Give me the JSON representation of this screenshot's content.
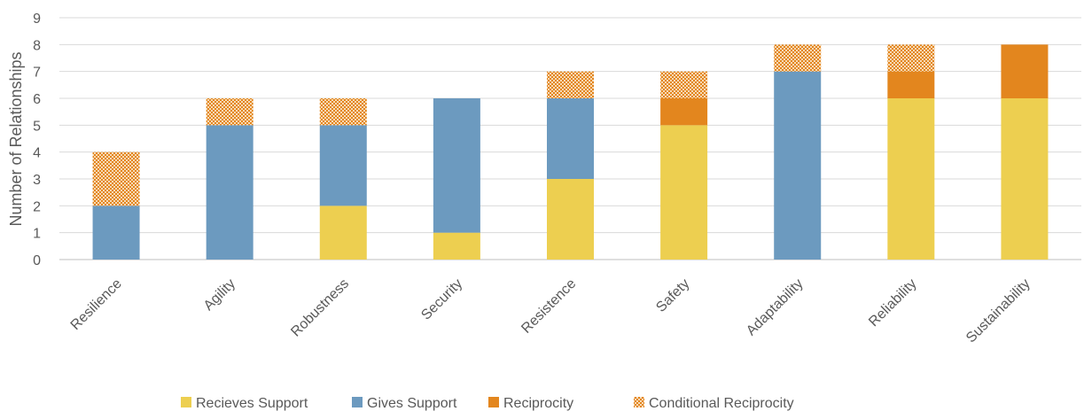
{
  "chart_data": {
    "type": "bar",
    "stacked": true,
    "categories": [
      "Resilience",
      "Agility",
      "Robustness",
      "Security",
      "Resistence",
      "Safety",
      "Adaptability",
      "Reliability",
      "Sustainability"
    ],
    "series": [
      {
        "name": "Recieves Support",
        "color": "#EDCF50",
        "pattern": "solid",
        "values": [
          0,
          0,
          2,
          1,
          3,
          5,
          0,
          6,
          6
        ]
      },
      {
        "name": "Gives Support",
        "color": "#6C9ABF",
        "pattern": "solid",
        "values": [
          2,
          5,
          3,
          5,
          3,
          0,
          7,
          0,
          0
        ]
      },
      {
        "name": "Reciprocity",
        "color": "#E3861E",
        "pattern": "solid",
        "values": [
          0,
          0,
          0,
          0,
          0,
          1,
          0,
          1,
          2
        ]
      },
      {
        "name": "Conditional Reciprocity",
        "color": "#E3861E",
        "pattern": "checkered",
        "values": [
          2,
          1,
          1,
          0,
          1,
          1,
          1,
          1,
          0
        ]
      }
    ],
    "title": "",
    "xlabel": "",
    "ylabel": "Number of Relationships",
    "ylim": [
      0,
      9
    ],
    "yticks": [
      "0",
      "1",
      "2",
      "3",
      "4",
      "5",
      "6",
      "7",
      "8",
      "9"
    ],
    "grid": true,
    "legend_position": "bottom"
  }
}
